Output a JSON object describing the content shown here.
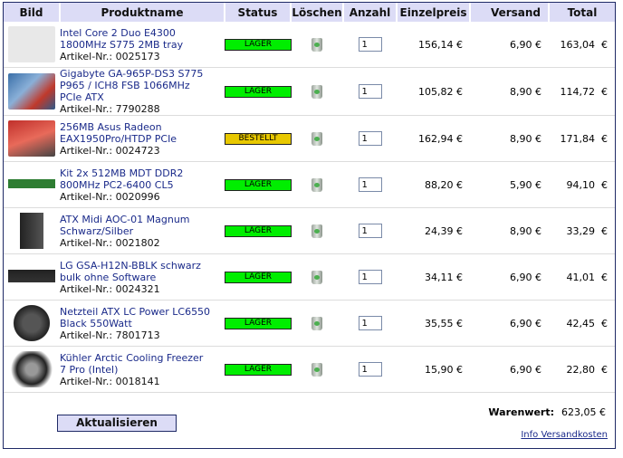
{
  "headers": {
    "bild": "Bild",
    "name": "Produktname",
    "status": "Status",
    "del": "Löschen",
    "qty": "Anzahl",
    "price": "Einzelpreis",
    "ship": "Versand",
    "total": "Total"
  },
  "rows": [
    {
      "l1": "Intel Core 2 Duo E4300",
      "l2": "1800MHz S775 2MB tray",
      "l3": "",
      "art": "Artikel-Nr.: 0025173",
      "status": "LAGER",
      "qty": "1",
      "price": "156,14 €",
      "ship": "6,90 €",
      "total": "163,04  €",
      "img": "no-image"
    },
    {
      "l1": "Gigabyte GA-965P-DS3 S775",
      "l2": "P965 / ICH8 FSB 1066MHz",
      "l3": "PCIe ATX",
      "art": "Artikel-Nr.: 7790288",
      "status": "LAGER",
      "qty": "1",
      "price": "105,82 €",
      "ship": "8,90 €",
      "total": "114,72  €",
      "img": "mainboard"
    },
    {
      "l1": "256MB Asus Radeon",
      "l2": "EAX1950Pro/HTDP PCIe",
      "l3": "",
      "art": "Artikel-Nr.: 0024723",
      "status": "BESTELLT",
      "qty": "1",
      "price": "162,94 €",
      "ship": "8,90 €",
      "total": "171,84  €",
      "img": "graphics-card"
    },
    {
      "l1": "Kit 2x 512MB MDT DDR2",
      "l2": "800MHz PC2-6400 CL5",
      "l3": "",
      "art": "Artikel-Nr.: 0020996",
      "status": "LAGER",
      "qty": "1",
      "price": "88,20 €",
      "ship": "5,90 €",
      "total": "94,10  €",
      "img": "ram"
    },
    {
      "l1": "ATX Midi AOC-01 Magnum",
      "l2": "Schwarz/Silber",
      "l3": "",
      "art": "Artikel-Nr.: 0021802",
      "status": "LAGER",
      "qty": "1",
      "price": "24,39 €",
      "ship": "8,90 €",
      "total": "33,29  €",
      "img": "case"
    },
    {
      "l1": "LG GSA-H12N-BBLK schwarz",
      "l2": "bulk ohne Software",
      "l3": "",
      "art": "Artikel-Nr.: 0024321",
      "status": "LAGER",
      "qty": "1",
      "price": "34,11 €",
      "ship": "6,90 €",
      "total": "41,01  €",
      "img": "dvd-drive"
    },
    {
      "l1": "Netzteil ATX LC Power LC6550",
      "l2": "Black 550Watt",
      "l3": "",
      "art": "Artikel-Nr.: 7801713",
      "status": "LAGER",
      "qty": "1",
      "price": "35,55 €",
      "ship": "6,90 €",
      "total": "42,45  €",
      "img": "psu"
    },
    {
      "l1": "Kühler Arctic Cooling Freezer",
      "l2": "7 Pro (Intel)",
      "l3": "",
      "art": "Artikel-Nr.: 0018141",
      "status": "LAGER",
      "qty": "1",
      "price": "15,90 €",
      "ship": "6,90 €",
      "total": "22,80  €",
      "img": "cooler"
    }
  ],
  "colors": {
    "LAGER": "#00ee00",
    "BESTELLT": "#e8c800",
    "header": "#dcdcf6",
    "link": "#1a2a8a"
  },
  "footer": {
    "update": "Aktualisieren",
    "ww_label": "Warenwert:",
    "ww_value": "623,05 €",
    "info": "Info Versandkosten"
  }
}
